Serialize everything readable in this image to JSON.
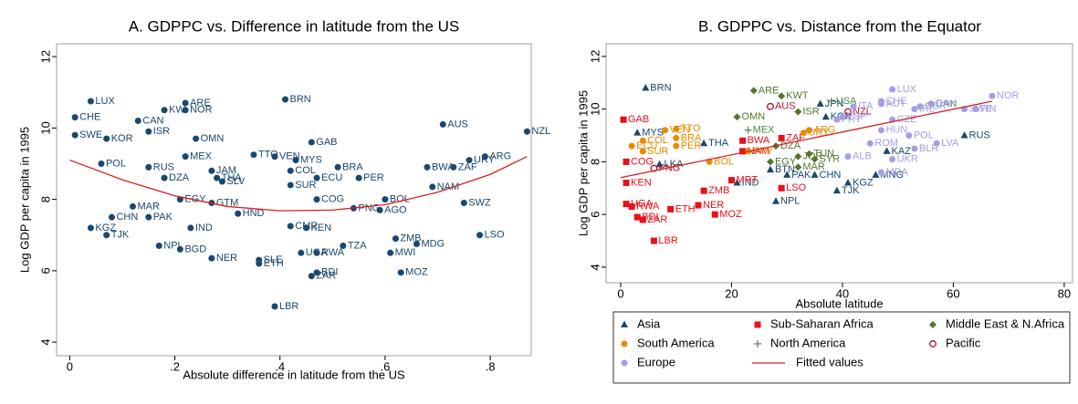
{
  "chart_data": [
    {
      "type": "scatter",
      "title": "A. GDPPC vs. Difference in latitude from the US",
      "x_label": "Absolute difference in latitude from the US",
      "y_label": "Log GDP per capita in 1995",
      "xlim": [
        -0.025,
        0.878
      ],
      "ylim": [
        3.62,
        12.36
      ],
      "xticks": [
        0,
        {
          "value": 0.2,
          "label": ".2"
        },
        {
          "value": 0.4,
          "label": ".4"
        },
        {
          "value": 0.6,
          "label": ".6"
        },
        {
          "value": 0.8,
          "label": ".8"
        }
      ],
      "yticks": [
        4,
        6,
        8,
        10,
        12
      ],
      "grid": false,
      "series": [
        {
          "color": "#1a476f",
          "marker": "circle",
          "labels": [
            "LUX",
            "ARE",
            "BRN",
            "KW",
            "NOR",
            "AUS",
            "NZL",
            "CHE",
            "CAN",
            "ISR",
            "SWE",
            "KOR",
            "OMN",
            "GAB",
            "MEX",
            "TTO",
            "VEN",
            "MYS",
            "BRA",
            "BWA",
            "ZAF",
            "URY",
            "ARG",
            "JAM",
            "COL",
            "ECU",
            "PER",
            "SUR",
            "SWZ",
            "NAM",
            "BOL",
            "DZA",
            "EGY",
            "MAR",
            "PAK",
            "IND",
            "NPL",
            "BGD",
            "NER",
            "HND",
            "GTM",
            "THA",
            "SLV",
            "PNG",
            "AGO",
            "ZMB",
            "MDG",
            "LSO",
            "MWI",
            "MOZ",
            "TZA",
            "RWA",
            "UGA",
            "ZAR",
            "BDI",
            "ETH",
            "SLE",
            "LBR",
            "KEN",
            "TJK",
            "KGZ",
            "CMR",
            "COG",
            "CHN",
            "POL",
            "RUS"
          ],
          "x": [
            0.04,
            0.22,
            0.41,
            0.18,
            0.22,
            0.71,
            0.87,
            0.01,
            0.13,
            0.15,
            0.01,
            0.07,
            0.24,
            0.46,
            0.22,
            0.35,
            0.39,
            0.43,
            0.51,
            0.68,
            0.73,
            0.76,
            0.79,
            0.27,
            0.42,
            0.47,
            0.55,
            0.42,
            0.75,
            0.69,
            0.6,
            0.18,
            0.21,
            0.12,
            0.15,
            0.23,
            0.17,
            0.21,
            0.27,
            0.32,
            0.27,
            0.28,
            0.29,
            0.54,
            0.59,
            0.62,
            0.66,
            0.78,
            0.61,
            0.63,
            0.52,
            0.47,
            0.44,
            0.46,
            0.47,
            0.36,
            0.36,
            0.39,
            0.45,
            0.07,
            0.04,
            0.42,
            0.47,
            0.08,
            0.06,
            0.15
          ],
          "values": [
            10.75,
            10.7,
            10.8,
            10.5,
            10.5,
            10.1,
            9.9,
            10.3,
            10.2,
            9.9,
            9.8,
            9.7,
            9.7,
            9.6,
            9.2,
            9.25,
            9.2,
            9.1,
            8.9,
            8.9,
            8.9,
            9.1,
            9.2,
            8.8,
            8.8,
            8.6,
            8.6,
            8.4,
            7.9,
            8.35,
            8.0,
            8.6,
            8.0,
            7.8,
            7.5,
            7.2,
            6.7,
            6.6,
            6.35,
            7.6,
            7.9,
            8.6,
            8.5,
            7.75,
            7.7,
            6.9,
            6.75,
            7.0,
            6.5,
            5.95,
            6.7,
            6.5,
            6.5,
            5.85,
            5.95,
            6.2,
            6.3,
            5.0,
            7.2,
            7.0,
            7.2,
            7.25,
            8.0,
            7.5,
            9.0,
            8.9
          ]
        },
        {
          "type": "line",
          "color": "#d62020",
          "x": [
            0,
            0.1,
            0.2,
            0.3,
            0.4,
            0.5,
            0.6,
            0.7,
            0.8,
            0.87
          ],
          "values": [
            9.1,
            8.55,
            8.1,
            7.8,
            7.68,
            7.7,
            7.85,
            8.2,
            8.7,
            9.2
          ]
        }
      ]
    },
    {
      "type": "scatter",
      "title": "B. GDPPC vs. Distance from the Equator",
      "x_label": "Absolute latitude",
      "y_label": "Log GDP per capita in 1995",
      "xlim": [
        -2.63,
        81.5
      ],
      "ylim": [
        3.41,
        12.48
      ],
      "xticks": [
        0,
        20,
        40,
        60,
        80
      ],
      "yticks": [
        4,
        6,
        8,
        10,
        12
      ],
      "grid": false,
      "legend": "bottom",
      "series": [
        {
          "name": "Asia",
          "color": "#1a476f",
          "marker": "triangle",
          "labels": [
            "BRN",
            "JPN",
            "KOR",
            "MYS",
            "THA",
            "PAK",
            "NPL",
            "BTN",
            "KAZ",
            "MNG",
            "TJK",
            "KGZ",
            "CHN",
            "RUS",
            "IND",
            "LKA"
          ],
          "x": [
            4.5,
            36,
            37,
            3,
            15,
            30,
            28,
            27,
            48,
            46,
            39,
            41,
            35,
            62,
            21,
            7
          ],
          "values": [
            10.8,
            10.2,
            9.7,
            9.1,
            8.7,
            7.5,
            6.5,
            7.7,
            8.4,
            7.5,
            6.9,
            7.2,
            7.5,
            9.0,
            7.2,
            7.9
          ]
        },
        {
          "name": "Sub-Saharan Africa",
          "color": "#e8101a",
          "marker": "square",
          "labels": [
            "GAB",
            "KEN",
            "LBR",
            "ZAR",
            "UGA",
            "BDI",
            "RWA",
            "ETH",
            "MOZ",
            "NER",
            "BWA",
            "ZAF",
            "NAM",
            "LSO",
            "MRT",
            "COG",
            "ZMB"
          ],
          "x": [
            0.5,
            1,
            6,
            4,
            1,
            3,
            2,
            9,
            17,
            14,
            22,
            29,
            22,
            29,
            20,
            1,
            15
          ],
          "values": [
            9.6,
            7.2,
            5.0,
            5.8,
            6.4,
            5.9,
            6.3,
            6.2,
            6.0,
            6.35,
            8.8,
            8.9,
            8.4,
            7.0,
            7.3,
            8.0,
            6.9
          ]
        },
        {
          "name": "Middle East & N.Africa",
          "color": "#55752f",
          "marker": "diamond",
          "labels": [
            "ARE",
            "KWT",
            "OMN",
            "ISR",
            "DZA",
            "MAR",
            "EGY",
            "TUN",
            "SYR",
            "JOR"
          ],
          "x": [
            24,
            29,
            21,
            32,
            28,
            32,
            27,
            34,
            35,
            32
          ],
          "values": [
            10.7,
            10.5,
            9.7,
            9.9,
            8.6,
            7.8,
            8.0,
            8.3,
            8.1,
            8.2
          ]
        },
        {
          "name": "South America",
          "color": "#e88a00",
          "marker": "circle",
          "labels": [
            "VEN",
            "TTO",
            "BRA",
            "COL",
            "ECU",
            "PER",
            "SUR",
            "BOL",
            "URY",
            "ARG",
            "PRY"
          ],
          "x": [
            8,
            10,
            10,
            4,
            2,
            10,
            4,
            16,
            33,
            34,
            23
          ],
          "values": [
            9.2,
            9.25,
            8.9,
            8.8,
            8.6,
            8.6,
            8.4,
            8.0,
            9.1,
            9.2,
            8.4
          ]
        },
        {
          "name": "North America",
          "color": "#4a8a4a",
          "marker": "plus",
          "labels": [
            "MEX",
            "USA",
            "CAN"
          ],
          "x": [
            23,
            38,
            56
          ],
          "values": [
            9.2,
            10.3,
            10.2
          ]
        },
        {
          "name": "Pacific",
          "color": "#b0102e",
          "marker": "hollow-circle",
          "labels": [
            "AUS",
            "NZL",
            "PNG"
          ],
          "x": [
            27,
            41,
            6
          ],
          "values": [
            10.1,
            9.9,
            7.75
          ]
        },
        {
          "name": "Europe",
          "color": "#a49ee6",
          "marker": "circle",
          "labels": [
            "LUX",
            "CHE",
            "NOR",
            "FIN",
            "SWE",
            "ITA",
            "AUT",
            "CZE",
            "POL",
            "LVA",
            "BLR",
            "ALB",
            "ROM",
            "UKR",
            "MDA",
            "IRL",
            "DNK",
            "GBR",
            "ESP",
            "PRT",
            "HUN"
          ],
          "x": [
            49,
            47,
            67,
            64,
            62,
            42,
            47,
            49,
            52,
            57,
            53,
            41,
            45,
            49,
            47,
            53,
            56,
            54,
            40,
            39,
            47
          ],
          "values": [
            10.75,
            10.3,
            10.5,
            10.0,
            10.0,
            10.1,
            10.2,
            9.6,
            9.0,
            8.7,
            8.5,
            8.2,
            8.7,
            8.1,
            7.6,
            10.0,
            10.2,
            10.1,
            9.7,
            9.6,
            9.2
          ]
        },
        {
          "name": "Fitted values",
          "type": "line",
          "color": "#d62020",
          "x": [
            0,
            67
          ],
          "values": [
            7.4,
            10.3
          ]
        }
      ]
    }
  ]
}
